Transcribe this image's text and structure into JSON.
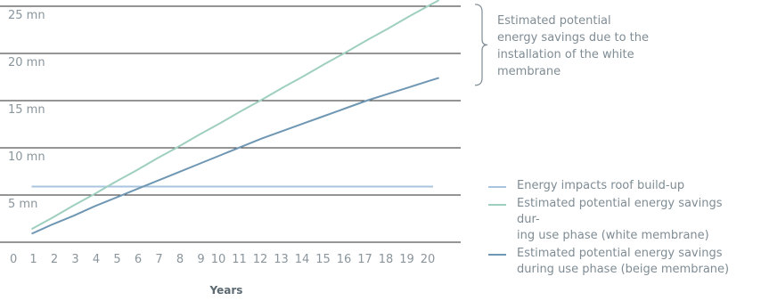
{
  "chart_data": {
    "type": "line",
    "x": [
      1,
      2,
      3,
      4,
      5,
      6,
      7,
      8,
      9,
      10,
      11,
      12,
      13,
      14,
      15,
      16,
      17,
      18,
      19,
      20
    ],
    "x_tick_labels": [
      "0",
      "1",
      "2",
      "3",
      "4",
      "5",
      "6",
      "7",
      "8",
      "9",
      "10",
      "11",
      "12",
      "13",
      "14",
      "15",
      "16",
      "17",
      "18",
      "19",
      "20"
    ],
    "y_tick_labels": [
      "5 mn",
      "10 mn",
      "15 mn",
      "20 mn",
      "25 mn"
    ],
    "y_ticks": [
      5,
      10,
      15,
      20,
      25
    ],
    "xlim": [
      0,
      20.5
    ],
    "ylim": [
      0,
      25
    ],
    "xlabel": "Years",
    "ylabel": "",
    "grid": "horizontal",
    "series": [
      {
        "name": "Energy impacts roof build-up",
        "color": "#a9c4df",
        "values": [
          5.9,
          5.9,
          5.9,
          5.9,
          5.9,
          5.9,
          5.9,
          5.9,
          5.9,
          5.9,
          5.9,
          5.9,
          5.9,
          5.9,
          5.9,
          5.9,
          5.9,
          5.9,
          5.9,
          5.9
        ]
      },
      {
        "name": "Estimated potential energy savings during use phase (white membrane)",
        "color": "#9fcfbf",
        "values": [
          1.4,
          2.6,
          3.9,
          5.1,
          6.4,
          7.6,
          8.9,
          10.1,
          11.4,
          12.6,
          13.9,
          15.1,
          16.4,
          17.6,
          18.9,
          20.1,
          21.4,
          22.6,
          23.9,
          25.1
        ]
      },
      {
        "name": "Estimated potential energy savings during use phase (beige membrane)",
        "color": "#6f97b3",
        "values": [
          0.9,
          1.9,
          2.8,
          3.8,
          4.7,
          5.6,
          6.5,
          7.4,
          8.3,
          9.2,
          10.1,
          11.0,
          11.8,
          12.6,
          13.4,
          14.2,
          15.0,
          15.7,
          16.4,
          17.1
        ]
      }
    ],
    "annotation": "Estimated potential\nenergy savings due to the\ninstallation of the white\nmembrane"
  },
  "legend": [
    {
      "label": "Energy impacts roof build-up",
      "color": "#a9c4df"
    },
    {
      "label": "Estimated potential energy savings dur-\ning use phase (white membrane)",
      "color": "#9fcfbf"
    },
    {
      "label": "Estimated potential energy savings\nduring use phase (beige membrane)",
      "color": "#6f97b3"
    }
  ]
}
